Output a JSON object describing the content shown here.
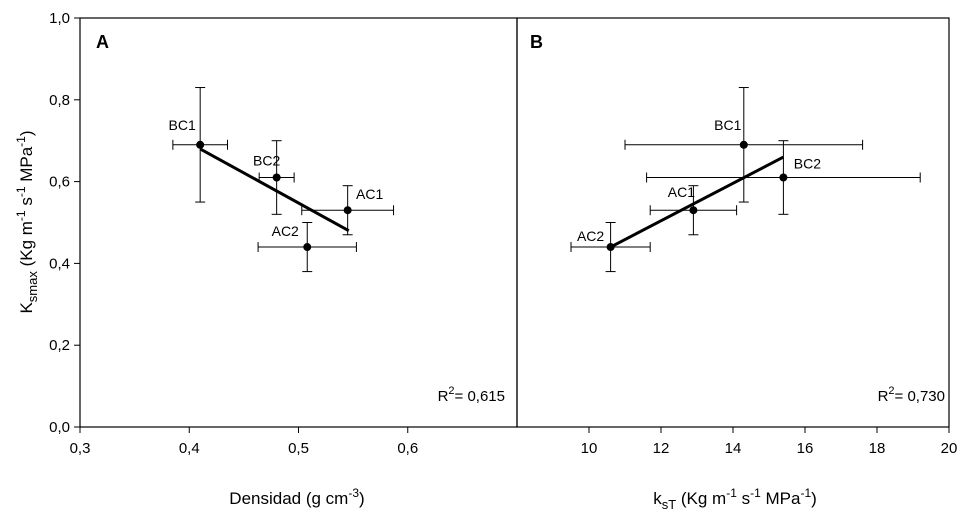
{
  "figure": {
    "ylabel": {
      "base": "K",
      "sub": "smax",
      "rest": [
        " (Kg m",
        "-1",
        " s",
        "-1",
        " MPa",
        "-1",
        ")"
      ]
    },
    "yticks": [
      "0,0",
      "0,2",
      "0,4",
      "0,6",
      "0,8",
      "1,0"
    ]
  },
  "chart_data": [
    {
      "type": "scatter",
      "panel": "A",
      "xlabel": "Densidad (g cm-3)",
      "xlabel_parts": {
        "text": "Densidad (g cm",
        "sup": "-3",
        "end": ")"
      },
      "ylabel": "Ksmax (Kg m-1 s-1 MPa-1)",
      "xlim": [
        0.3,
        0.7
      ],
      "ylim": [
        0.0,
        1.0
      ],
      "xticks": [
        0.3,
        0.4,
        0.5,
        0.6
      ],
      "xtick_labels": [
        "0,3",
        "0,4",
        "0,5",
        "0,6"
      ],
      "yticks": [
        0.0,
        0.2,
        0.4,
        0.6,
        0.8,
        1.0
      ],
      "ytick_labels": [
        "0,0",
        "0,2",
        "0,4",
        "0,6",
        "0,8",
        "1,0"
      ],
      "points": [
        {
          "label": "BC1",
          "x": 0.41,
          "y": 0.69,
          "xerr": 0.025,
          "yerr": 0.14
        },
        {
          "label": "BC2",
          "x": 0.48,
          "y": 0.61,
          "xerr": 0.016,
          "yerr": 0.09
        },
        {
          "label": "AC1",
          "x": 0.545,
          "y": 0.53,
          "xerr": 0.042,
          "yerr": 0.06
        },
        {
          "label": "AC2",
          "x": 0.508,
          "y": 0.44,
          "xerr": 0.045,
          "yerr": 0.06
        }
      ],
      "fit": {
        "x": [
          0.41,
          0.546
        ],
        "y": [
          0.68,
          0.48
        ]
      },
      "r2": {
        "prefix": "R",
        "sup": "2",
        "value": "= 0,615"
      }
    },
    {
      "type": "scatter",
      "panel": "B",
      "xlabel": "ksT (Kg m-1 s-1 MPa-1)",
      "xlabel_parts": {
        "base": "k",
        "sub": "sT",
        "rest": [
          " (Kg m",
          "-1",
          " s",
          "-1",
          " MPa",
          "-1",
          ")"
        ]
      },
      "ylabel": "Ksmax (Kg m-1 s-1 MPa-1)",
      "xlim": [
        8,
        20
      ],
      "ylim": [
        0.0,
        1.0
      ],
      "xticks": [
        10,
        12,
        14,
        16,
        18,
        20
      ],
      "xtick_labels": [
        "10",
        "12",
        "14",
        "16",
        "18",
        "20"
      ],
      "points": [
        {
          "label": "BC1",
          "x": 14.3,
          "y": 0.69,
          "xerr": 3.3,
          "yerr": 0.14
        },
        {
          "label": "BC2",
          "x": 15.4,
          "y": 0.61,
          "xerr": 3.8,
          "yerr": 0.09
        },
        {
          "label": "AC1",
          "x": 12.9,
          "y": 0.53,
          "xerr": 1.2,
          "yerr": 0.06
        },
        {
          "label": "AC2",
          "x": 10.6,
          "y": 0.44,
          "xerr": 1.1,
          "yerr": 0.06
        }
      ],
      "fit": {
        "x": [
          10.6,
          15.4
        ],
        "y": [
          0.44,
          0.66
        ]
      },
      "r2": {
        "prefix": "R",
        "sup": "2",
        "value": "= 0,730"
      }
    }
  ]
}
